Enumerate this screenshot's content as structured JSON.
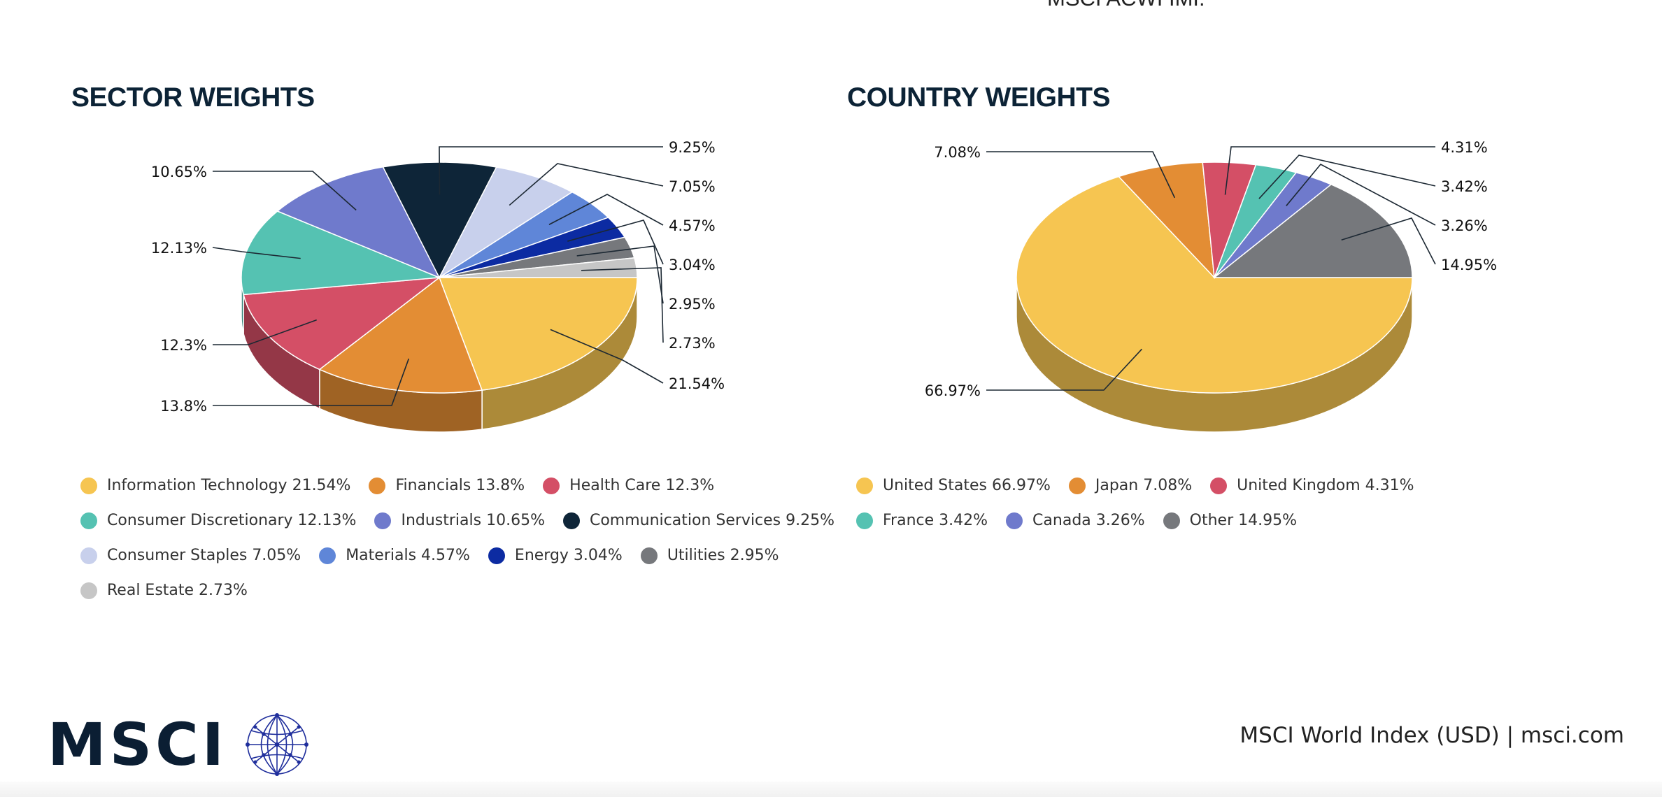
{
  "header_cutoff_text": "MSCI ACWI IMI.",
  "sector": {
    "title": "SECTOR WEIGHTS"
  },
  "country": {
    "title": "COUNTRY WEIGHTS"
  },
  "chart_data": [
    {
      "type": "pie",
      "title": "SECTOR WEIGHTS",
      "style": "3d",
      "categories": [
        "Information Technology",
        "Financials",
        "Health Care",
        "Consumer Discretionary",
        "Industrials",
        "Communication Services",
        "Consumer Staples",
        "Materials",
        "Energy",
        "Utilities",
        "Real Estate"
      ],
      "values": [
        21.54,
        13.8,
        12.3,
        12.13,
        10.65,
        9.25,
        7.05,
        4.57,
        3.04,
        2.95,
        2.73
      ],
      "data_labels": [
        "21.54%",
        "13.8%",
        "12.3%",
        "12.13%",
        "10.65%",
        "9.25%",
        "7.05%",
        "4.57%",
        "3.04%",
        "2.95%",
        "2.73%"
      ],
      "legend_labels": [
        "Information Technology 21.54%",
        "Financials 13.8%",
        "Health Care 12.3%",
        "Consumer Discretionary 12.13%",
        "Industrials 10.65%",
        "Communication Services 9.25%",
        "Consumer Staples 7.05%",
        "Materials 4.57%",
        "Energy 3.04%",
        "Utilities 2.95%",
        "Real Estate 2.73%"
      ],
      "colors": [
        "#f6c551",
        "#e38d34",
        "#d44f66",
        "#55c2b2",
        "#6f7acc",
        "#0e2538",
        "#c8d0ec",
        "#5f86d8",
        "#0c2ba2",
        "#76787c",
        "#c6c6c6"
      ],
      "legend_position": "bottom"
    },
    {
      "type": "pie",
      "title": "COUNTRY WEIGHTS",
      "style": "3d",
      "categories": [
        "United States",
        "Japan",
        "United Kingdom",
        "France",
        "Canada",
        "Other"
      ],
      "values": [
        66.97,
        7.08,
        4.31,
        3.42,
        3.26,
        14.95
      ],
      "data_labels": [
        "66.97%",
        "7.08%",
        "4.31%",
        "3.42%",
        "3.26%",
        "14.95%"
      ],
      "legend_labels": [
        "United States 66.97%",
        "Japan 7.08%",
        "United Kingdom 4.31%",
        "France 3.42%",
        "Canada 3.26%",
        "Other 14.95%"
      ],
      "colors": [
        "#f6c551",
        "#e38d34",
        "#d44f66",
        "#55c2b2",
        "#6f7acc",
        "#76787c"
      ],
      "legend_position": "bottom"
    }
  ],
  "footer": {
    "logo_text": "MSCI",
    "right_text": "MSCI World Index (USD) | msci.com"
  }
}
